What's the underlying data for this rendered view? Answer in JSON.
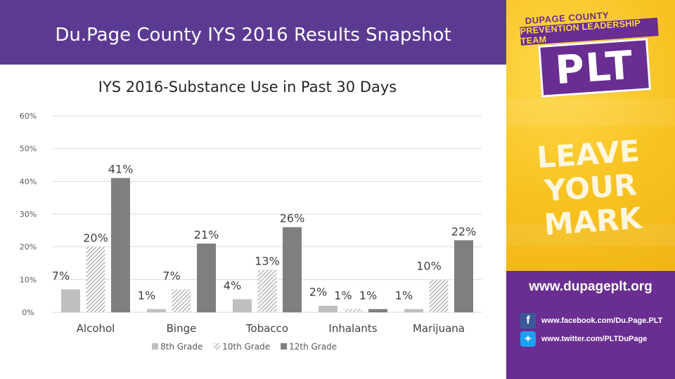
{
  "header": {
    "title": "Du.Page County IYS 2016 Results Snapshot",
    "background": "#5b3b92"
  },
  "side_panel": {
    "logo_county": "DUPAGE COUNTY",
    "logo_team": "PREVENTION LEADERSHIP TEAM",
    "logo_text": "PLT",
    "slogan_line1": "LEAVE YOUR",
    "slogan_line2": "MARK",
    "website": "www.dupageplt.org",
    "facebook_icon": "facebook-icon",
    "facebook": "www.facebook.com/Du.Page.PLT",
    "twitter_icon": "twitter-icon",
    "twitter": "www.twitter.com/PLTDuPage",
    "accent": "#6a2d91",
    "panel_color": "#f7c11e"
  },
  "chart_data": {
    "type": "bar",
    "title": "IYS 2016-Substance Use in Past 30 Days",
    "xlabel": "",
    "ylabel": "",
    "categories": [
      "Alcohol",
      "Binge",
      "Tobacco",
      "Inhalants",
      "Marijuana"
    ],
    "series": [
      {
        "name": "8th Grade",
        "values": [
          7,
          1,
          4,
          2,
          1
        ],
        "color": "#bfbfbf",
        "pattern": "solid"
      },
      {
        "name": "10th Grade",
        "values": [
          20,
          7,
          13,
          1,
          10
        ],
        "color": "#a6a6a6",
        "pattern": "hatched"
      },
      {
        "name": "12th Grade",
        "values": [
          41,
          21,
          26,
          1,
          22
        ],
        "color": "#7f7f7f",
        "pattern": "solid"
      }
    ],
    "data_labels": [
      [
        "7%",
        "1%",
        "4%",
        "2%",
        "1%"
      ],
      [
        "20%",
        "7%",
        "13%",
        "1%",
        "10%"
      ],
      [
        "41%",
        "21%",
        "26%",
        "1%",
        "22%"
      ]
    ],
    "yticks": [
      0,
      10,
      20,
      30,
      40,
      50,
      60
    ],
    "ytick_labels": [
      "0%",
      "10%",
      "20%",
      "30%",
      "40%",
      "50%",
      "60%"
    ],
    "ylim": [
      0,
      60
    ],
    "grid": true,
    "legend_position": "bottom"
  }
}
